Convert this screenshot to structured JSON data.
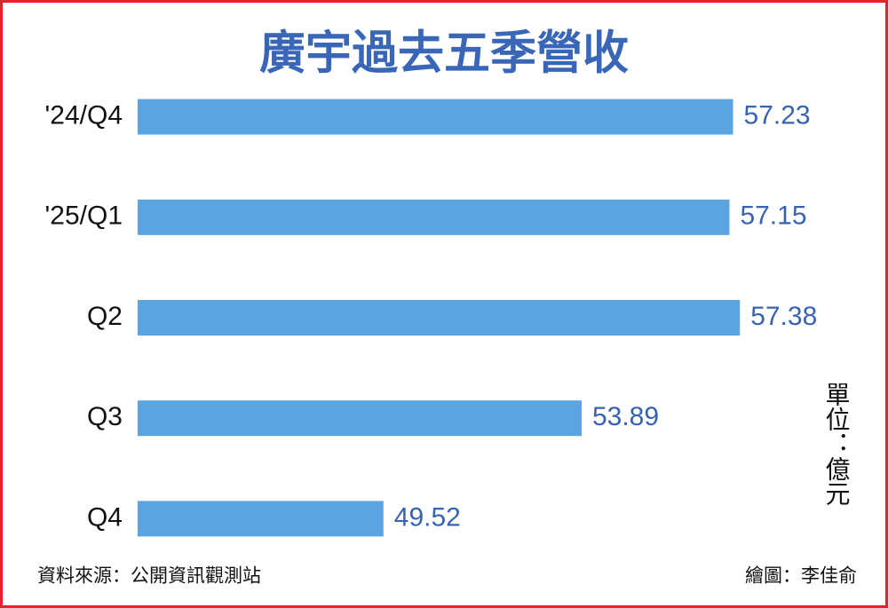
{
  "chart_data": {
    "type": "hbar",
    "title": "廣宇過去五季營收",
    "categories": [
      "'24/Q4",
      "'25/Q1",
      "Q2",
      "Q3",
      "Q4"
    ],
    "values": [
      57.23,
      57.15,
      57.38,
      53.89,
      49.52
    ],
    "color": "#5ba4e2",
    "xlim": [
      44.1,
      60
    ],
    "unit": "單位：億元",
    "source": "資料來源：公開資訊觀測站",
    "credit": "繪圖：李佳俞"
  }
}
